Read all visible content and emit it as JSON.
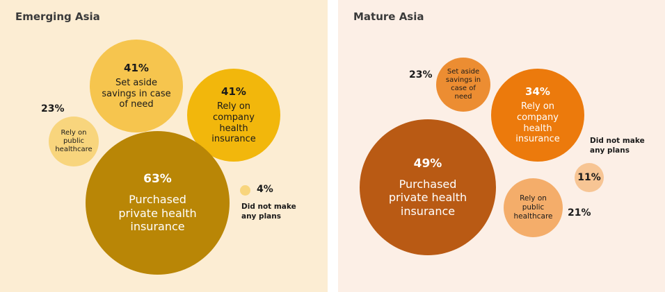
{
  "colors": {
    "emerging_bg": "#fcedd3",
    "mature_bg": "#fcefe6",
    "emerging_savings": "#f6c54e",
    "emerging_company": "#f2b70c",
    "emerging_public": "#f8d57d",
    "emerging_private": "#b98606",
    "emerging_no_plans": "#f8d57d",
    "mature_savings": "#ec8d32",
    "mature_company": "#ec7a0c",
    "mature_public": "#f4ad6a",
    "mature_private": "#b95a14",
    "mature_no_plans": "#f7c594"
  },
  "chart_data": [
    {
      "type": "bubble",
      "title": "Emerging Asia",
      "unit": "%",
      "categories": [
        "Set aside savings in case of need",
        "Rely on company health insurance",
        "Rely on public healthcare",
        "Purchased private health insurance",
        "Did not make any plans"
      ],
      "values": [
        41,
        41,
        23,
        63,
        4
      ],
      "labels": [
        "41%",
        "41%",
        "23%",
        "63%",
        "4%"
      ]
    },
    {
      "type": "bubble",
      "title": "Mature Asia",
      "unit": "%",
      "categories": [
        "Set aside savings in case of need",
        "Rely on company health insurance",
        "Did not make any plans",
        "Purchased private health insurance",
        "Rely on public healthcare"
      ],
      "values": [
        23,
        34,
        11,
        49,
        21
      ],
      "labels": [
        "23%",
        "34%",
        "11%",
        "49%",
        "21%"
      ]
    }
  ],
  "emerging": {
    "title": "Emerging Asia",
    "savings": {
      "pct": "41%",
      "label_1": "Set aside",
      "label_2": "savings in case",
      "label_3": "of need"
    },
    "company": {
      "pct": "41%",
      "label_1": "Rely on",
      "label_2": "company",
      "label_3": "health",
      "label_4": "insurance"
    },
    "public": {
      "pct": "23%",
      "label_1": "Rely on",
      "label_2": "public",
      "label_3": "healthcare"
    },
    "private": {
      "pct": "63%",
      "label_1": "Purchased",
      "label_2": "private health",
      "label_3": "insurance"
    },
    "no_plans": {
      "pct": "4%",
      "label_1": "Did not make",
      "label_2": "any plans"
    }
  },
  "mature": {
    "title": "Mature Asia",
    "savings": {
      "pct": "23%",
      "label_1": "Set aside",
      "label_2": "savings in",
      "label_3": "case of",
      "label_4": "need"
    },
    "company": {
      "pct": "34%",
      "label_1": "Rely on",
      "label_2": "company",
      "label_3": "health",
      "label_4": "insurance"
    },
    "no_plans": {
      "pct": "11%",
      "label_1": "Did not make",
      "label_2": "any plans"
    },
    "private": {
      "pct": "49%",
      "label_1": "Purchased",
      "label_2": "private health",
      "label_3": "insurance"
    },
    "public": {
      "pct": "21%",
      "label_1": "Rely on",
      "label_2": "public",
      "label_3": "healthcare"
    }
  }
}
